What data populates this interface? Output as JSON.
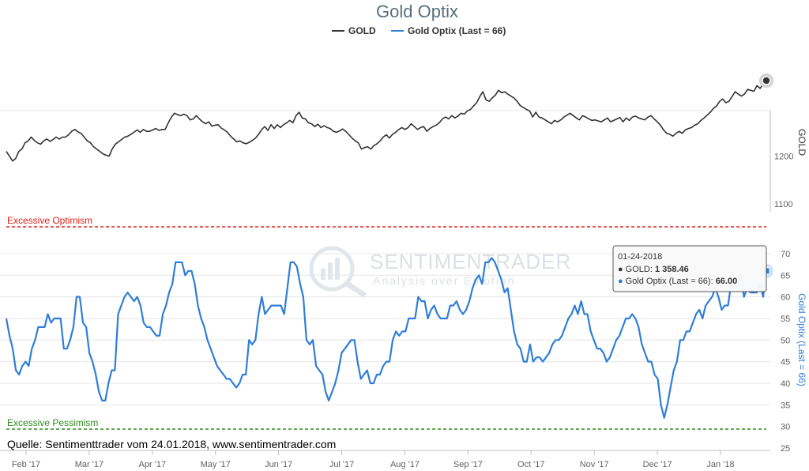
{
  "chart_data": {
    "type": "line",
    "title": "Gold Optix",
    "legend": {
      "placement": "top-center",
      "items": [
        {
          "name": "GOLD",
          "color": "#333333"
        },
        {
          "name": "Gold Optix (Last = 66)",
          "color": "#2f7ed8"
        }
      ]
    },
    "x_ticks": [
      "Feb '17",
      "Mar '17",
      "Apr '17",
      "May '17",
      "Jun '17",
      "Jul '17",
      "Aug '17",
      "Sep '17",
      "Oct '17",
      "Nov '17",
      "Dec '17",
      "Jan '18"
    ],
    "gold_axis": {
      "title": "GOLD",
      "ticks": [
        1100,
        1200
      ],
      "range": [
        1100,
        1370
      ]
    },
    "optix_axis": {
      "title": "Gold Optix (Last = 66)",
      "ticks": [
        25,
        30,
        35,
        40,
        45,
        50,
        55,
        60,
        65,
        70
      ],
      "range": [
        25,
        72
      ]
    },
    "bands": [
      {
        "label": "Excessive Optimism",
        "color": "#e2231a",
        "value_label": ""
      },
      {
        "label": "Excessive Pessimism",
        "color": "#2e8b1f",
        "value_label": ""
      }
    ],
    "series": [
      {
        "name": "GOLD",
        "color": "#333333",
        "values": [
          1210,
          1200,
          1190,
          1195,
          1210,
          1215,
          1228,
          1232,
          1240,
          1233,
          1228,
          1225,
          1232,
          1236,
          1231,
          1235,
          1240,
          1236,
          1240,
          1240,
          1245,
          1252,
          1256,
          1251,
          1248,
          1240,
          1232,
          1228,
          1220,
          1215,
          1210,
          1205,
          1202,
          1200,
          1215,
          1225,
          1230,
          1235,
          1240,
          1242,
          1246,
          1250,
          1255,
          1250,
          1256,
          1252,
          1252,
          1255,
          1258,
          1254,
          1256,
          1256,
          1270,
          1282,
          1290,
          1287,
          1285,
          1288,
          1285,
          1276,
          1278,
          1285,
          1278,
          1272,
          1268,
          1272,
          1263,
          1265,
          1266,
          1259,
          1255,
          1250,
          1242,
          1236,
          1230,
          1232,
          1228,
          1226,
          1229,
          1233,
          1238,
          1246,
          1256,
          1262,
          1254,
          1266,
          1258,
          1266,
          1260,
          1266,
          1270,
          1275,
          1270,
          1285,
          1292,
          1280,
          1278,
          1270,
          1268,
          1262,
          1267,
          1260,
          1264,
          1260,
          1258,
          1252,
          1250,
          1253,
          1257,
          1252,
          1245,
          1238,
          1232,
          1228,
          1215,
          1218,
          1220,
          1215,
          1222,
          1226,
          1232,
          1240,
          1245,
          1238,
          1246,
          1250,
          1256,
          1260,
          1256,
          1260,
          1268,
          1262,
          1256,
          1260,
          1262,
          1252,
          1258,
          1262,
          1265,
          1270,
          1278,
          1282,
          1278,
          1285,
          1280,
          1284,
          1290,
          1288,
          1295,
          1298,
          1305,
          1312,
          1325,
          1335,
          1318,
          1315,
          1322,
          1328,
          1338,
          1333,
          1335,
          1330,
          1326,
          1322,
          1315,
          1306,
          1302,
          1298,
          1295,
          1282,
          1292,
          1282,
          1280,
          1276,
          1272,
          1268,
          1275,
          1272,
          1276,
          1282,
          1286,
          1290,
          1285,
          1280,
          1276,
          1285,
          1282,
          1278,
          1275,
          1276,
          1274,
          1272,
          1276,
          1280,
          1272,
          1275,
          1278,
          1281,
          1272,
          1280,
          1275,
          1282,
          1284,
          1280,
          1278,
          1276,
          1282,
          1285,
          1278,
          1272,
          1265,
          1255,
          1248,
          1246,
          1242,
          1248,
          1252,
          1248,
          1255,
          1258,
          1260,
          1265,
          1268,
          1275,
          1280,
          1286,
          1292,
          1300,
          1305,
          1315,
          1320,
          1312,
          1315,
          1325,
          1335,
          1330,
          1326,
          1330,
          1340,
          1338,
          1336,
          1348,
          1342,
          1352,
          1358.46
        ]
      },
      {
        "name": "Gold Optix (Last = 66)",
        "color": "#2f7ed8",
        "values": [
          55,
          51,
          48,
          43,
          42,
          44,
          45,
          44,
          48,
          50,
          53,
          53,
          53,
          56,
          54,
          55,
          55,
          55,
          48,
          48,
          50,
          53,
          60,
          60,
          54,
          53,
          47,
          45,
          42,
          38,
          36,
          36,
          40,
          43,
          43,
          56,
          58,
          60,
          61,
          60,
          59,
          60,
          58,
          54,
          53,
          53,
          52,
          51,
          51,
          56,
          58,
          61,
          63,
          68,
          68,
          68,
          65,
          66,
          66,
          63,
          58,
          55,
          53,
          50,
          48,
          46,
          44,
          43,
          42,
          41,
          41,
          40,
          39,
          40,
          42,
          42,
          50,
          49,
          50,
          56,
          60,
          56,
          57,
          58,
          58,
          58,
          58,
          56,
          62,
          68,
          68,
          67,
          63,
          60,
          50,
          49,
          50,
          44,
          43,
          42,
          38,
          36,
          38,
          40,
          43,
          47,
          48,
          49,
          50,
          50,
          45,
          41,
          42,
          43,
          40,
          40,
          42,
          42,
          44,
          45,
          45,
          50,
          52,
          51,
          52,
          52,
          55,
          55,
          55,
          60,
          59,
          59,
          55,
          57,
          58,
          56,
          55,
          55,
          55,
          58,
          58,
          59,
          57,
          56,
          57,
          59,
          62,
          64,
          65,
          63,
          68,
          68,
          69,
          68,
          66,
          64,
          61,
          62,
          57,
          52,
          49,
          48,
          45,
          45,
          49,
          45,
          46,
          46,
          45,
          46,
          47,
          49,
          50,
          50,
          51,
          53,
          55,
          56,
          58,
          56,
          59,
          56,
          56,
          52,
          50,
          48,
          48,
          47,
          45,
          46,
          48,
          50,
          51,
          53,
          55,
          55,
          56,
          55,
          53,
          49,
          47,
          45,
          45,
          42,
          41,
          35,
          32,
          35,
          39,
          43,
          45,
          50,
          50,
          52,
          52,
          54,
          56,
          57,
          55,
          58,
          59,
          60,
          62,
          60,
          57,
          58,
          58,
          63,
          64,
          62,
          65,
          60,
          62,
          61,
          61,
          61,
          63,
          60,
          66
        ]
      }
    ],
    "watermark": {
      "brand": "SENTIMENTRADER",
      "tagline": "Analysis over Emotion"
    },
    "tooltip": {
      "date": "01-24-2018",
      "gold_label": "GOLD: ",
      "gold_value": "1 358.46",
      "optix_label": "Gold Optix (Last = 66): ",
      "optix_value": "66.00"
    },
    "source": "Quelle: Sentimenttrader vom 24.01.2018, www.sentimentrader.com"
  }
}
